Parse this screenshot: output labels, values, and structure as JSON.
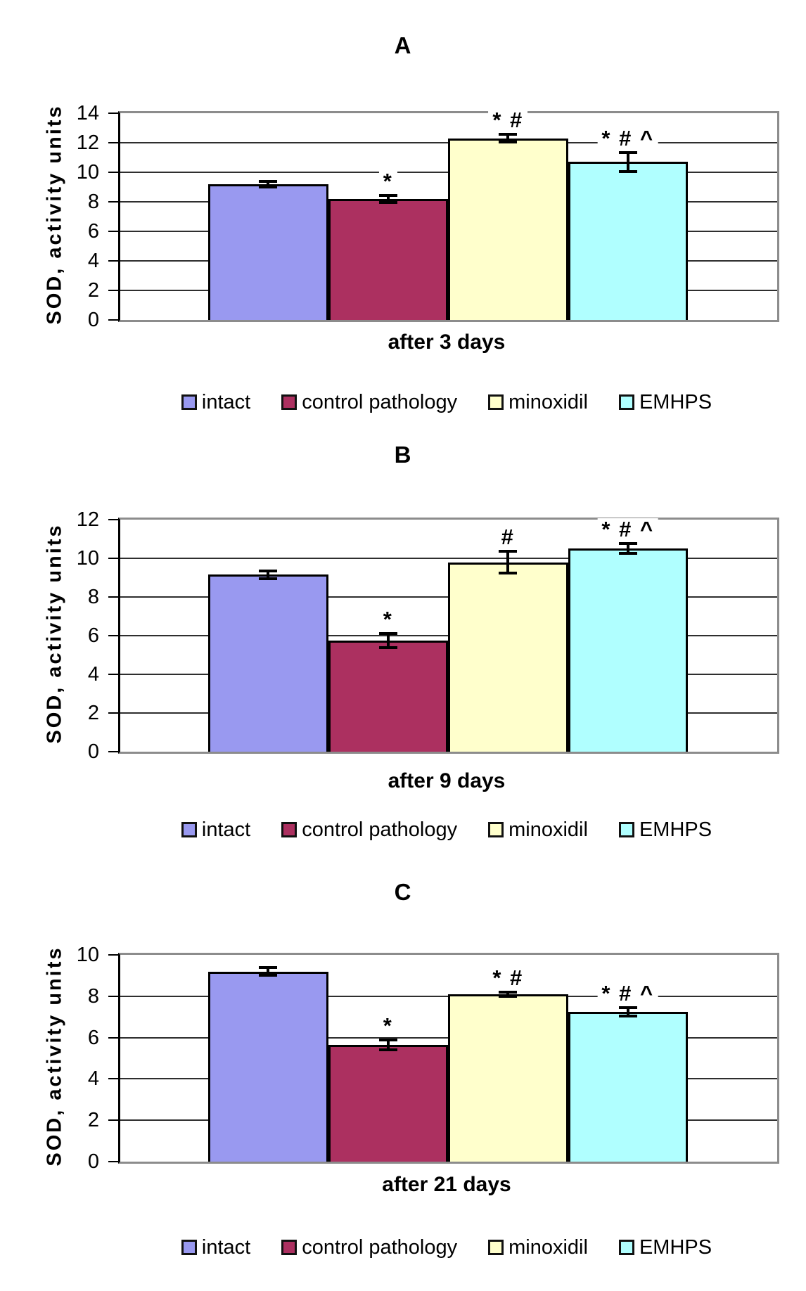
{
  "figure": {
    "panels": [
      "A",
      "B",
      "C"
    ],
    "background": "#FFFFFF",
    "frame_color": "#8C8C8C",
    "axis_color": "#000000"
  },
  "chart_data": [
    {
      "type": "bar",
      "panel_label": "A",
      "xlabel": "after 3 days",
      "ylabel": "SOD, activity units",
      "ylim": [
        0,
        14
      ],
      "yticks": [
        0,
        2,
        4,
        6,
        8,
        10,
        12,
        14
      ],
      "grid": true,
      "legend_position": "bottom",
      "categories": [
        "intact",
        "control pathology",
        "minoxidil",
        "EMHPS"
      ],
      "colors": [
        "#9999F0",
        "#AC3060",
        "#FFFFCC",
        "#B0FFFF"
      ],
      "values": [
        9.2,
        8.2,
        12.3,
        10.7
      ],
      "errors": [
        0.2,
        0.25,
        0.25,
        0.65
      ],
      "annotations": [
        "",
        "*",
        "* #",
        "* # ^"
      ]
    },
    {
      "type": "bar",
      "panel_label": "B",
      "xlabel": "after 9 days",
      "ylabel": "SOD, activity units",
      "ylim": [
        0,
        12
      ],
      "yticks": [
        0,
        2,
        4,
        6,
        8,
        10,
        12
      ],
      "grid": true,
      "legend_position": "bottom",
      "categories": [
        "intact",
        "control pathology",
        "minoxidil",
        "EMHPS"
      ],
      "colors": [
        "#9999F0",
        "#AC3060",
        "#FFFFCC",
        "#B0FFFF"
      ],
      "values": [
        9.15,
        5.75,
        9.8,
        10.5
      ],
      "errors": [
        0.2,
        0.35,
        0.55,
        0.25
      ],
      "annotations": [
        "",
        "*",
        "#",
        "* # ^"
      ]
    },
    {
      "type": "bar",
      "panel_label": "C",
      "xlabel": "after 21  days",
      "ylabel": "SOD, activity units",
      "ylim": [
        0,
        10
      ],
      "yticks": [
        0,
        2,
        4,
        6,
        8,
        10
      ],
      "grid": true,
      "legend_position": "bottom",
      "categories": [
        "intact",
        "control pathology",
        "minoxidil",
        "EMHPS"
      ],
      "colors": [
        "#9999F0",
        "#AC3060",
        "#FFFFCC",
        "#B0FFFF"
      ],
      "values": [
        9.2,
        5.65,
        8.1,
        7.25
      ],
      "errors": [
        0.2,
        0.25,
        0.1,
        0.2
      ],
      "annotations": [
        "",
        "*",
        "* #",
        "* # ^"
      ]
    }
  ]
}
